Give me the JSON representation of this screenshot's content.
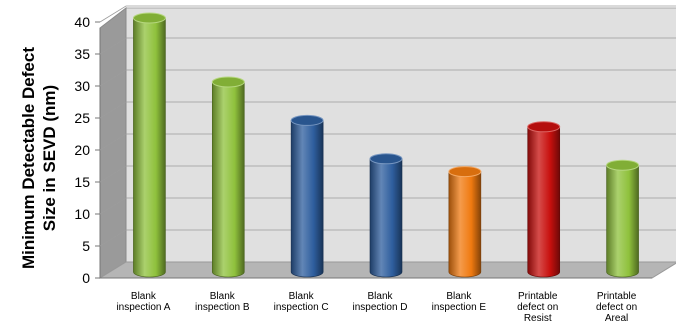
{
  "chart_data": {
    "type": "bar",
    "title": "",
    "xlabel": "",
    "ylabel": "Minimum Detectable Defect Size in SEVD (nm)",
    "ylabel_lines": [
      "Minimum Detectable Defect",
      "Size in SEVD (nm)"
    ],
    "ylim": [
      0,
      40
    ],
    "yticks": [
      "0",
      "5",
      "10",
      "15",
      "20",
      "25",
      "30",
      "35",
      "40"
    ],
    "grid": true,
    "legend": "none",
    "categories": [
      "Blank inspection A",
      "Blank inspection B",
      "Blank inspection C",
      "Blank inspection D",
      "Blank inspection E",
      "Printable defect on Resist",
      "Printable defect on Areal"
    ],
    "category_lines": [
      [
        "Blank",
        "inspection A"
      ],
      [
        "Blank",
        "inspection B"
      ],
      [
        "Blank",
        "inspection C"
      ],
      [
        "Blank",
        "inspection D"
      ],
      [
        "Blank",
        "inspection E"
      ],
      [
        "Printable",
        "defect on",
        "Resist"
      ],
      [
        "Printable",
        "defect on",
        "Areal"
      ]
    ],
    "values": [
      40,
      30,
      24,
      18,
      16,
      23,
      17
    ],
    "bar_colors": [
      "#8fc13c",
      "#8fc13c",
      "#2e5e9e",
      "#2e5e9e",
      "#f07a10",
      "#c8100e",
      "#8fc13c"
    ]
  }
}
